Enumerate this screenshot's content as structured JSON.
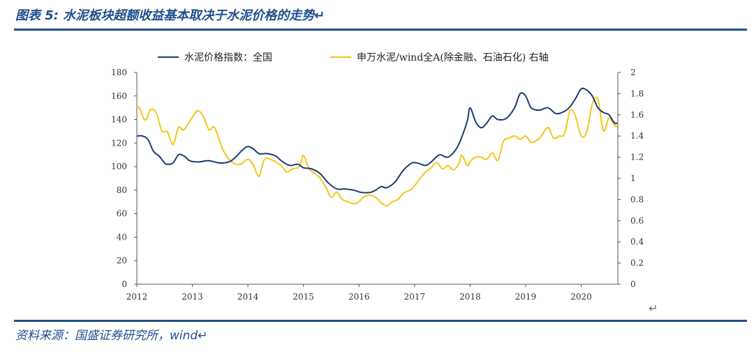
{
  "header": {
    "title": "图表 5:  水泥板块超额收益基本取决于水泥价格的走势↵"
  },
  "footer": {
    "source": "资料来源：国盛证券研究所，wind↵",
    "return_mark": "↵"
  },
  "colors": {
    "accent": "#1f4e8c",
    "index_line": "#1b3a73",
    "excess_line": "#f5c518"
  },
  "chart_data": {
    "type": "line",
    "title": "",
    "xlabel": "",
    "ylabel": "",
    "x_ticks": [
      "2012",
      "2013",
      "2014",
      "2015",
      "2016",
      "2017",
      "2018",
      "2019",
      "2020"
    ],
    "y_left": {
      "ylim": [
        0,
        180
      ],
      "ticks": [
        "0",
        "20",
        "40",
        "60",
        "80",
        "100",
        "120",
        "140",
        "160",
        "180"
      ]
    },
    "y_right": {
      "ylim": [
        0,
        2
      ],
      "ticks": [
        "0",
        "0.2",
        "0.4",
        "0.6",
        "0.8",
        "1",
        "1.2",
        "1.4",
        "1.6",
        "1.8",
        "2"
      ]
    },
    "legend_position": "top",
    "series": [
      {
        "name": "水泥价格指数：全国",
        "axis": "left",
        "x": [
          2012.0,
          2012.1,
          2012.2,
          2012.3,
          2012.4,
          2012.5,
          2012.55,
          2012.65,
          2012.75,
          2012.85,
          2012.95,
          2013.1,
          2013.3,
          2013.5,
          2013.7,
          2013.9,
          2014.0,
          2014.1,
          2014.2,
          2014.35,
          2014.5,
          2014.6,
          2014.75,
          2014.9,
          2015.0,
          2015.15,
          2015.3,
          2015.45,
          2015.6,
          2015.75,
          2015.9,
          2016.05,
          2016.2,
          2016.3,
          2016.4,
          2016.5,
          2016.65,
          2016.8,
          2016.95,
          2017.05,
          2017.2,
          2017.3,
          2017.45,
          2017.6,
          2017.75,
          2017.85,
          2017.95,
          2018.0,
          2018.1,
          2018.2,
          2018.3,
          2018.4,
          2018.5,
          2018.65,
          2018.8,
          2018.9,
          2019.0,
          2019.1,
          2019.25,
          2019.4,
          2019.55,
          2019.7,
          2019.8,
          2019.9,
          2020.0,
          2020.1,
          2020.2,
          2020.3,
          2020.4,
          2020.5,
          2020.6,
          2020.65
        ],
        "values": [
          126,
          126,
          123,
          113,
          109,
          103,
          102,
          103,
          110,
          109,
          105,
          104,
          105,
          103,
          105,
          114,
          117,
          115,
          111,
          111,
          109,
          105,
          101,
          102,
          99,
          98,
          94,
          86,
          81,
          81,
          80,
          78,
          78,
          80,
          83,
          82,
          87,
          97,
          103,
          103,
          101,
          104,
          110,
          108,
          115,
          125,
          139,
          150,
          138,
          133,
          137,
          143,
          140,
          141,
          150,
          162,
          160,
          150,
          148,
          150,
          145,
          147,
          151,
          158,
          166,
          165,
          160,
          150,
          146,
          144,
          137,
          137
        ]
      },
      {
        "name": "申万水泥/wind全A(除金融、石油石化) 右轴",
        "axis": "right",
        "x": [
          2012.0,
          2012.05,
          2012.15,
          2012.25,
          2012.35,
          2012.45,
          2012.55,
          2012.65,
          2012.75,
          2012.85,
          2013.0,
          2013.1,
          2013.2,
          2013.3,
          2013.4,
          2013.55,
          2013.7,
          2013.85,
          2014.0,
          2014.1,
          2014.2,
          2014.3,
          2014.45,
          2014.6,
          2014.7,
          2014.8,
          2014.9,
          2014.95,
          2015.0,
          2015.1,
          2015.2,
          2015.3,
          2015.4,
          2015.5,
          2015.6,
          2015.7,
          2015.8,
          2015.9,
          2016.0,
          2016.1,
          2016.2,
          2016.3,
          2016.4,
          2016.5,
          2016.6,
          2016.7,
          2016.8,
          2016.95,
          2017.1,
          2017.2,
          2017.3,
          2017.4,
          2017.5,
          2017.6,
          2017.7,
          2017.8,
          2017.85,
          2017.95,
          2018.0,
          2018.1,
          2018.2,
          2018.3,
          2018.4,
          2018.5,
          2018.6,
          2018.7,
          2018.8,
          2018.9,
          2019.0,
          2019.1,
          2019.25,
          2019.4,
          2019.5,
          2019.6,
          2019.7,
          2019.8,
          2019.9,
          2020.0,
          2020.1,
          2020.2,
          2020.3,
          2020.4,
          2020.5,
          2020.6,
          2020.65
        ],
        "values": [
          1.68,
          1.66,
          1.55,
          1.65,
          1.62,
          1.45,
          1.44,
          1.32,
          1.48,
          1.46,
          1.58,
          1.64,
          1.58,
          1.46,
          1.48,
          1.27,
          1.16,
          1.13,
          1.18,
          1.12,
          1.02,
          1.18,
          1.17,
          1.12,
          1.06,
          1.09,
          1.1,
          1.14,
          1.22,
          1.09,
          1.05,
          1.0,
          0.92,
          0.82,
          0.87,
          0.8,
          0.78,
          0.76,
          0.78,
          0.83,
          0.84,
          0.82,
          0.77,
          0.74,
          0.78,
          0.8,
          0.86,
          0.9,
          1.0,
          1.06,
          1.1,
          1.15,
          1.09,
          1.12,
          1.08,
          1.14,
          1.22,
          1.12,
          1.16,
          1.2,
          1.2,
          1.18,
          1.24,
          1.17,
          1.35,
          1.38,
          1.4,
          1.37,
          1.4,
          1.34,
          1.38,
          1.48,
          1.38,
          1.4,
          1.42,
          1.64,
          1.58,
          1.4,
          1.44,
          1.7,
          1.75,
          1.45,
          1.57,
          1.5,
          1.49
        ]
      }
    ]
  }
}
